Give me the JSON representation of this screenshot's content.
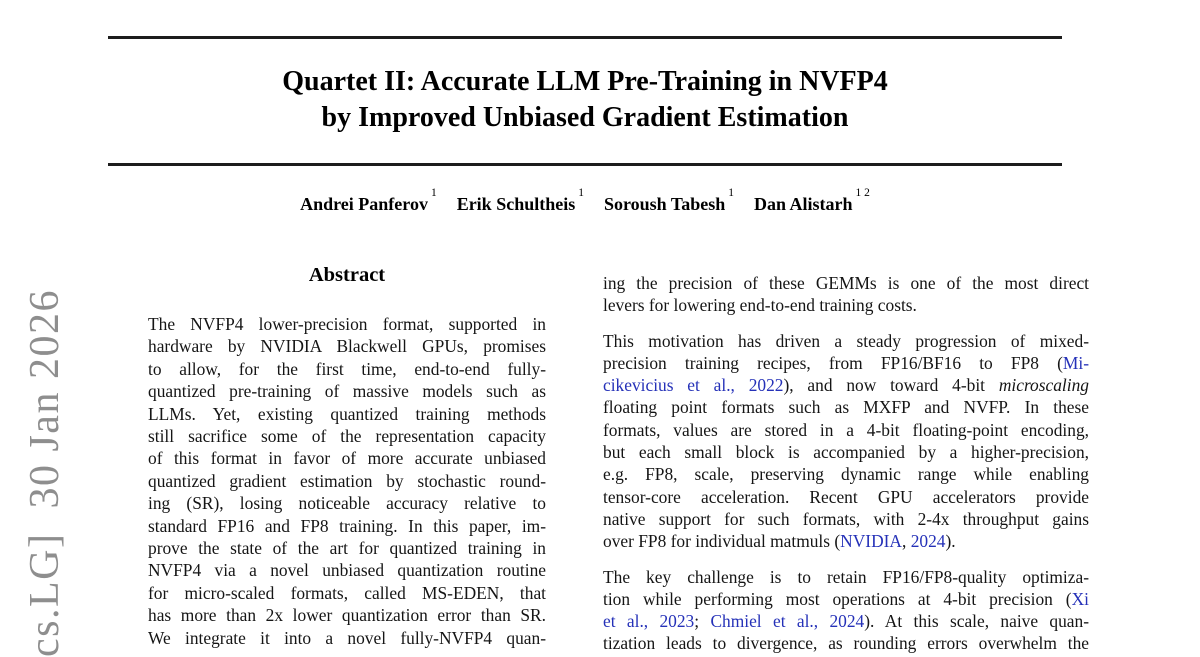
{
  "watermark": {
    "text": "cs.LG]  30 Jan 2026"
  },
  "header": {
    "title_line1": "Quartet II: Accurate LLM Pre-Training in NVFP4",
    "title_line2": "by Improved Unbiased Gradient Estimation"
  },
  "authors": [
    {
      "name": "Andrei Panferov",
      "affiliation_sup": "1"
    },
    {
      "name": "Erik Schultheis",
      "affiliation_sup": "1"
    },
    {
      "name": "Soroush Tabesh",
      "affiliation_sup": "1"
    },
    {
      "name": "Dan Alistarh",
      "affiliation_sup": "1 2"
    }
  ],
  "abstract": {
    "heading": "Abstract",
    "lines": [
      "The NVFP4 lower-precision format, supported in",
      "hardware by NVIDIA Blackwell GPUs, promises",
      "to allow, for the first time, end-to-end fully-",
      "quantized pre-training of massive models such as",
      "LLMs. Yet, existing quantized training methods",
      "still sacrifice some of the representation capacity",
      "of this format in favor of more accurate unbiased",
      "quantized gradient estimation by stochastic round-",
      "ing (SR), losing noticeable accuracy relative to",
      "standard FP16 and FP8 training. In this paper, im-",
      "prove the state of the art for quantized training in",
      "NVFP4 via a novel unbiased quantization routine",
      "for micro-scaled formats, called MS-EDEN, that",
      "has more than 2x lower quantization error than SR.",
      "We integrate it into a novel fully-NVFP4 quan-"
    ]
  },
  "right_column": {
    "paragraphs": [
      {
        "lines": [
          {
            "segs": [
              {
                "t": "ing the precision of these GEMMs is one of the most direct"
              }
            ]
          },
          {
            "segs": [
              {
                "t": "levers for lowering end-to-end training costs."
              }
            ],
            "last": true
          }
        ]
      },
      {
        "lines": [
          {
            "segs": [
              {
                "t": "This motivation has driven a steady progression of mixed-"
              }
            ]
          },
          {
            "segs": [
              {
                "t": "precision training recipes, from FP16/BF16 to FP8 ("
              },
              {
                "t": "Mi-",
                "s": "link"
              }
            ]
          },
          {
            "segs": [
              {
                "t": "cikevicius et al., 2022",
                "s": "link"
              },
              {
                "t": "), and now toward 4-bit "
              },
              {
                "t": "microscaling",
                "s": "italic"
              }
            ]
          },
          {
            "segs": [
              {
                "t": "floating point formats such as MXFP and NVFP. In these"
              }
            ]
          },
          {
            "segs": [
              {
                "t": "formats, values are stored in a 4-bit floating-point encoding,"
              }
            ]
          },
          {
            "segs": [
              {
                "t": "but each small block is accompanied by a higher-precision,"
              }
            ]
          },
          {
            "segs": [
              {
                "t": "e.g. FP8, scale, preserving dynamic range while enabling"
              }
            ]
          },
          {
            "segs": [
              {
                "t": "tensor-core acceleration. Recent GPU accelerators provide"
              }
            ]
          },
          {
            "segs": [
              {
                "t": "native support for such formats, with 2-4x throughput gains"
              }
            ]
          },
          {
            "segs": [
              {
                "t": "over FP8 for individual matmuls ("
              },
              {
                "t": "NVIDIA",
                "s": "link"
              },
              {
                "t": ", "
              },
              {
                "t": "2024",
                "s": "link"
              },
              {
                "t": ")."
              }
            ],
            "last": true
          }
        ]
      },
      {
        "lines": [
          {
            "segs": [
              {
                "t": "The key challenge is to retain FP16/FP8-quality optimiza-"
              }
            ]
          },
          {
            "segs": [
              {
                "t": "tion while performing most operations at 4-bit precision ("
              },
              {
                "t": "Xi",
                "s": "link"
              }
            ]
          },
          {
            "segs": [
              {
                "t": "et al., 2023",
                "s": "link"
              },
              {
                "t": "; "
              },
              {
                "t": "Chmiel et al., 2024",
                "s": "link"
              },
              {
                "t": "). At this scale, naive quan-"
              }
            ]
          },
          {
            "segs": [
              {
                "t": "tization leads to divergence, as rounding errors overwhelm the"
              }
            ]
          }
        ]
      }
    ]
  },
  "colors": {
    "link": "#2531b8",
    "text": "#151515",
    "rule": "#1d1d1d",
    "watermark": "#8e8e8e"
  }
}
